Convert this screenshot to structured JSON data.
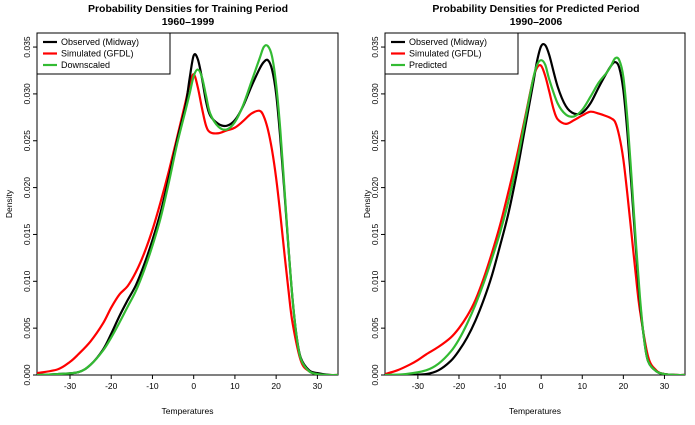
{
  "chart_data": [
    {
      "type": "line",
      "title": "Probability Densities for Training Period",
      "subtitle": "1960–1999",
      "xlabel": "Temperatures",
      "ylabel": "Density",
      "xlim": [
        -38,
        35
      ],
      "ylim": [
        0,
        0.0365
      ],
      "xticks": [
        -30,
        -20,
        -10,
        0,
        10,
        20,
        30
      ],
      "yticks": [
        0.0,
        0.005,
        0.01,
        0.015,
        0.02,
        0.025,
        0.03,
        0.035
      ],
      "ytick_labels": [
        "0.000",
        "0.005",
        "0.010",
        "0.015",
        "0.020",
        "0.025",
        "0.030",
        "0.035"
      ],
      "legend_position": "top-left",
      "series": [
        {
          "name": "Observed (Midway)",
          "color": "#000000",
          "x": [
            -38,
            -33,
            -28,
            -25,
            -22,
            -20,
            -18,
            -16,
            -14,
            -12,
            -10,
            -8,
            -6,
            -4,
            -2,
            -1,
            0,
            1,
            2,
            3,
            4,
            6,
            8,
            10,
            12,
            14,
            16,
            17,
            18,
            19,
            20,
            21,
            22,
            23,
            24,
            25,
            26,
            28,
            30,
            33,
            35
          ],
          "y": [
            0,
            0.0001,
            0.0003,
            0.0011,
            0.0027,
            0.0044,
            0.0063,
            0.008,
            0.0096,
            0.0118,
            0.0144,
            0.0174,
            0.0211,
            0.0251,
            0.0287,
            0.0316,
            0.0341,
            0.0337,
            0.0317,
            0.0292,
            0.0277,
            0.0268,
            0.0266,
            0.0272,
            0.0287,
            0.0308,
            0.0327,
            0.0334,
            0.0336,
            0.0326,
            0.03,
            0.0253,
            0.0196,
            0.0135,
            0.008,
            0.004,
            0.0018,
            0.0005,
            0.0002,
            0,
            0
          ]
        },
        {
          "name": "Simulated (GFDL)",
          "color": "#ff0000",
          "x": [
            -38,
            -33,
            -30,
            -28,
            -25,
            -22,
            -20,
            -18,
            -16,
            -14,
            -12,
            -10,
            -8,
            -6,
            -4,
            -2,
            -1,
            0,
            1,
            2,
            3,
            4,
            6,
            8,
            10,
            12,
            14,
            16,
            17,
            18,
            19,
            20,
            21,
            22,
            23,
            24,
            26,
            28,
            30,
            33,
            35
          ],
          "y": [
            0.0002,
            0.0006,
            0.0014,
            0.0022,
            0.0036,
            0.0055,
            0.0072,
            0.0086,
            0.0095,
            0.011,
            0.013,
            0.0155,
            0.0185,
            0.0218,
            0.0254,
            0.0291,
            0.031,
            0.0321,
            0.0307,
            0.0285,
            0.0266,
            0.0259,
            0.0258,
            0.0261,
            0.0264,
            0.0271,
            0.0279,
            0.0282,
            0.0276,
            0.0262,
            0.024,
            0.021,
            0.0172,
            0.013,
            0.009,
            0.0055,
            0.0015,
            0.0004,
            0.0001,
            0,
            0
          ]
        },
        {
          "name": "Downscaled",
          "color": "#33bb33",
          "x": [
            -38,
            -33,
            -28,
            -25,
            -22,
            -20,
            -18,
            -16,
            -14,
            -12,
            -10,
            -8,
            -6,
            -4,
            -2,
            -1,
            0,
            1,
            2,
            3,
            4,
            6,
            8,
            10,
            12,
            14,
            16,
            17,
            18,
            19,
            20,
            21,
            22,
            23,
            24,
            25,
            26,
            28,
            30,
            33,
            35
          ],
          "y": [
            0,
            0.0001,
            0.0003,
            0.0011,
            0.0026,
            0.004,
            0.0056,
            0.0073,
            0.009,
            0.0112,
            0.0138,
            0.0168,
            0.0206,
            0.0247,
            0.0282,
            0.03,
            0.0319,
            0.0326,
            0.0318,
            0.0298,
            0.0279,
            0.0265,
            0.0262,
            0.027,
            0.0288,
            0.0313,
            0.0338,
            0.035,
            0.0351,
            0.034,
            0.031,
            0.0262,
            0.02,
            0.0136,
            0.008,
            0.004,
            0.0017,
            0.0004,
            0.0001,
            0,
            0
          ]
        }
      ]
    },
    {
      "type": "line",
      "title": "Probability Densities for Predicted Period",
      "subtitle": "1990–2006",
      "xlabel": "Temperatures",
      "ylabel": "Density",
      "xlim": [
        -38,
        35
      ],
      "ylim": [
        0,
        0.0365
      ],
      "xticks": [
        -30,
        -20,
        -10,
        0,
        10,
        20,
        30
      ],
      "yticks": [
        0.0,
        0.005,
        0.01,
        0.015,
        0.02,
        0.025,
        0.03,
        0.035
      ],
      "ytick_labels": [
        "0.000",
        "0.005",
        "0.010",
        "0.015",
        "0.020",
        "0.025",
        "0.030",
        "0.035"
      ],
      "legend_position": "top-left",
      "series": [
        {
          "name": "Observed (Midway)",
          "color": "#000000",
          "x": [
            -38,
            -33,
            -28,
            -25,
            -22,
            -20,
            -18,
            -16,
            -14,
            -12,
            -10,
            -8,
            -6,
            -4,
            -2,
            -1,
            0,
            1,
            2,
            4,
            6,
            8,
            10,
            12,
            14,
            16,
            17,
            18,
            19,
            20,
            21,
            22,
            23,
            24,
            25,
            26,
            28,
            30,
            33,
            35
          ],
          "y": [
            0,
            0,
            0.0001,
            0.0005,
            0.0015,
            0.0026,
            0.004,
            0.0058,
            0.008,
            0.0106,
            0.0138,
            0.0172,
            0.0214,
            0.0262,
            0.031,
            0.0335,
            0.0351,
            0.0352,
            0.0341,
            0.0308,
            0.0287,
            0.0279,
            0.028,
            0.029,
            0.0307,
            0.0323,
            0.033,
            0.0334,
            0.0328,
            0.0304,
            0.0258,
            0.02,
            0.0138,
            0.008,
            0.004,
            0.0015,
            0.0004,
            0.0001,
            0,
            0
          ]
        },
        {
          "name": "Simulated (GFDL)",
          "color": "#ff0000",
          "x": [
            -38,
            -35,
            -32,
            -30,
            -28,
            -25,
            -22,
            -20,
            -18,
            -16,
            -14,
            -12,
            -10,
            -8,
            -6,
            -4,
            -2,
            -1,
            0,
            1,
            2,
            3,
            4,
            6,
            8,
            10,
            12,
            14,
            16,
            17,
            18,
            19,
            20,
            21,
            22,
            23,
            24,
            26,
            28,
            30,
            33,
            35
          ],
          "y": [
            0.0001,
            0.0005,
            0.0011,
            0.0016,
            0.0022,
            0.003,
            0.004,
            0.005,
            0.0063,
            0.008,
            0.0103,
            0.013,
            0.016,
            0.0195,
            0.0232,
            0.0273,
            0.0315,
            0.0328,
            0.033,
            0.0319,
            0.0302,
            0.0284,
            0.0273,
            0.0268,
            0.0272,
            0.0277,
            0.0281,
            0.0279,
            0.0276,
            0.0274,
            0.027,
            0.0255,
            0.023,
            0.0192,
            0.015,
            0.0108,
            0.007,
            0.002,
            0.0005,
            0.0001,
            0,
            0
          ]
        },
        {
          "name": "Predicted",
          "color": "#33bb33",
          "x": [
            -38,
            -33,
            -28,
            -25,
            -22,
            -20,
            -18,
            -16,
            -14,
            -12,
            -10,
            -8,
            -6,
            -4,
            -2,
            -1,
            0,
            1,
            2,
            4,
            6,
            8,
            10,
            12,
            14,
            16,
            17,
            18,
            19,
            20,
            21,
            22,
            23,
            24,
            25,
            26,
            28,
            30,
            33,
            35
          ],
          "y": [
            0,
            0.0001,
            0.0005,
            0.0012,
            0.0025,
            0.0038,
            0.0055,
            0.0075,
            0.0098,
            0.0124,
            0.0152,
            0.0185,
            0.0224,
            0.027,
            0.0315,
            0.0331,
            0.0336,
            0.0331,
            0.0315,
            0.029,
            0.0278,
            0.0276,
            0.0283,
            0.0297,
            0.0312,
            0.0323,
            0.033,
            0.0338,
            0.0336,
            0.0318,
            0.0272,
            0.021,
            0.0145,
            0.0085,
            0.004,
            0.0015,
            0.0004,
            0.0001,
            0,
            0
          ]
        }
      ]
    }
  ]
}
